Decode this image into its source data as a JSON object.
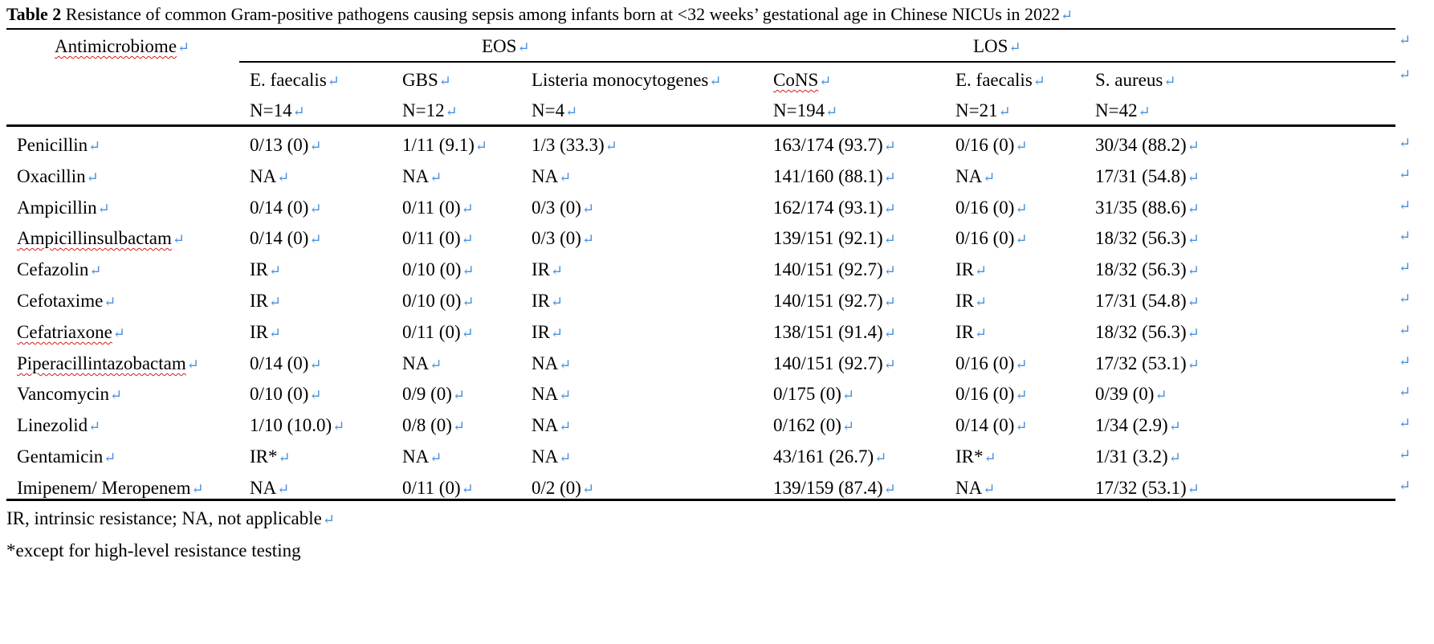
{
  "caption": {
    "label": "Table 2",
    "text": " Resistance of common Gram-positive pathogens causing sepsis among infants born at <32 weeks’ gestational age in Chinese NICUs in 2022"
  },
  "return_mark": "↵",
  "header": {
    "antimicrobial_label": "Antimicrobiome",
    "groups": {
      "eos": "EOS",
      "los": "LOS"
    },
    "pathogens": [
      {
        "name": "E. faecalis",
        "n": "N=14"
      },
      {
        "name": "GBS",
        "n": "N=12"
      },
      {
        "name": "Listeria monocytogenes",
        "n": "N=4"
      },
      {
        "name": "CoNS",
        "n": "N=194"
      },
      {
        "name": "E. faecalis",
        "n": "N=21"
      },
      {
        "name": "S. aureus",
        "n": "N=42"
      }
    ]
  },
  "rows": [
    {
      "drug": "Penicillin",
      "values": [
        "0/13 (0)",
        "1/11 (9.1)",
        "1/3 (33.3)",
        "163/174 (93.7)",
        "0/16 (0)",
        "30/34 (88.2)"
      ]
    },
    {
      "drug": "Oxacillin",
      "values": [
        "NA",
        "NA",
        "NA",
        "141/160 (88.1)",
        "NA",
        "17/31 (54.8)"
      ]
    },
    {
      "drug": "Ampicillin",
      "values": [
        "0/14 (0)",
        "0/11 (0)",
        "0/3 (0)",
        "162/174 (93.1)",
        "0/16 (0)",
        "31/35 (88.6)"
      ]
    },
    {
      "drug": "Ampicillinsulbactam",
      "values": [
        "0/14 (0)",
        "0/11 (0)",
        "0/3 (0)",
        "139/151 (92.1)",
        "0/16 (0)",
        "18/32 (56.3)"
      ]
    },
    {
      "drug": "Cefazolin",
      "values": [
        "IR",
        "0/10 (0)",
        "IR",
        "140/151 (92.7)",
        "IR",
        "18/32 (56.3)"
      ]
    },
    {
      "drug": "Cefotaxime",
      "values": [
        "IR",
        "0/10 (0)",
        "IR",
        "140/151 (92.7)",
        "IR",
        "17/31 (54.8)"
      ]
    },
    {
      "drug": "Cefatriaxone",
      "values": [
        "IR",
        "0/11 (0)",
        "IR",
        "138/151 (91.4)",
        "IR",
        "18/32 (56.3)"
      ]
    },
    {
      "drug": "Piperacillintazobactam",
      "values": [
        "0/14 (0)",
        "NA",
        "NA",
        "140/151 (92.7)",
        "0/16 (0)",
        "17/32 (53.1)"
      ]
    },
    {
      "drug": "Vancomycin",
      "values": [
        "0/10 (0)",
        "0/9 (0)",
        "NA",
        "0/175 (0)",
        "0/16 (0)",
        "0/39 (0)"
      ]
    },
    {
      "drug": "Linezolid",
      "values": [
        "1/10 (10.0)",
        "0/8 (0)",
        "NA",
        "0/162 (0)",
        "0/14 (0)",
        "1/34 (2.9)"
      ]
    },
    {
      "drug": "Gentamicin",
      "values": [
        "IR*",
        "NA",
        "NA",
        "43/161 (26.7)",
        "IR*",
        "1/31 (3.2)"
      ]
    },
    {
      "drug": "Imipenem/ Meropenem",
      "values": [
        "NA",
        "0/11 (0)",
        "0/2 (0)",
        "139/159 (87.4)",
        "NA",
        "17/32 (53.1)"
      ]
    }
  ],
  "footnotes": {
    "abbrev": "IR, intrinsic resistance; NA, not applicable",
    "star": "*except for high-level resistance testing"
  }
}
